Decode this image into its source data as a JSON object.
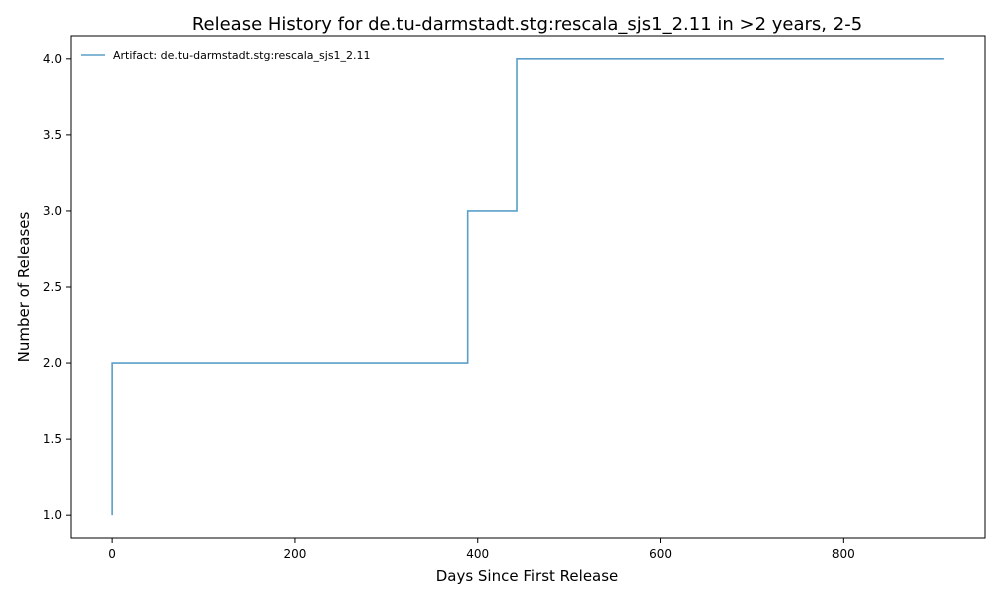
{
  "chart_data": {
    "type": "line",
    "step": "post",
    "title": "Release History for de.tu-darmstadt.stg:rescala_sjs1_2.11 in >2 years, 2-5",
    "xlabel": "Days Since First Release",
    "ylabel": "Number of Releases",
    "xlim": [
      -45,
      955
    ],
    "ylim": [
      0.85,
      4.15
    ],
    "xticks": [
      0,
      200,
      400,
      600,
      800
    ],
    "xtick_labels": [
      "0",
      "200",
      "400",
      "600",
      "800"
    ],
    "yticks": [
      1.0,
      1.5,
      2.0,
      2.5,
      3.0,
      3.5,
      4.0
    ],
    "ytick_labels": [
      "1.0",
      "1.5",
      "2.0",
      "2.5",
      "3.0",
      "3.5",
      "4.0"
    ],
    "grid": false,
    "legend_position": "top-left",
    "color": "#5b9ec9",
    "series": [
      {
        "name": "Artifact: de.tu-darmstadt.stg:rescala_sjs1_2.11",
        "x": [
          0,
          0,
          389,
          443,
          910
        ],
        "y": [
          1,
          2,
          3,
          4,
          4
        ]
      }
    ]
  }
}
